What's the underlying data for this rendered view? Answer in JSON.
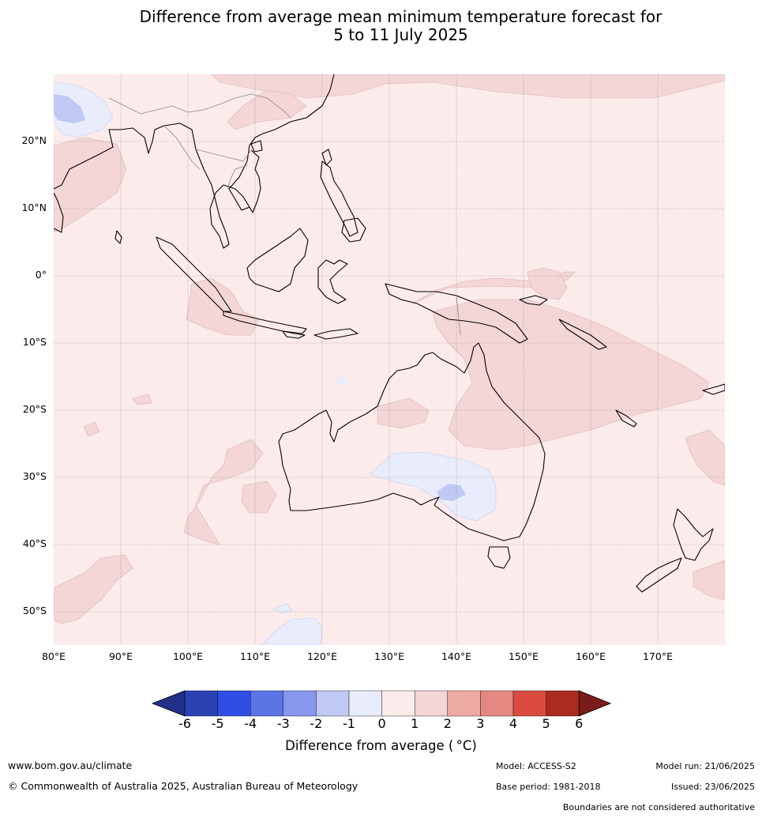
{
  "title_line1": "Difference from average mean minimum temperature forecast for",
  "title_line2": "5 to 11 July 2025",
  "lat_labels": [
    "20°N",
    "10°N",
    "0°",
    "10°S",
    "20°S",
    "30°S",
    "40°S",
    "50°S"
  ],
  "lon_labels": [
    "80°E",
    "90°E",
    "100°E",
    "110°E",
    "120°E",
    "130°E",
    "140°E",
    "150°E",
    "160°E",
    "170°E"
  ],
  "map": {
    "projection": "equirectangular",
    "lon_range": [
      80,
      180
    ],
    "lat_range": [
      -55,
      30
    ],
    "gridlines": true,
    "background_anomaly": "0 to 1 °C",
    "colors": {
      "ocean_land_0_1": "#fcebeb",
      "pos_1_2": "#f4d6d6",
      "neg_0_1": "#e9edfb",
      "neg_1_2": "#c0c8f4",
      "neg_2_3": "#8797ec",
      "coast": "#000000",
      "borders": "#888888",
      "grid": "#888888"
    }
  },
  "colorbar": {
    "ticks": [
      "-6",
      "-5",
      "-4",
      "-3",
      "-2",
      "-1",
      "0",
      "1",
      "2",
      "3",
      "4",
      "5",
      "6"
    ],
    "colors": [
      "#223087",
      "#2a42b4",
      "#2f4ee5",
      "#5b74e6",
      "#8797ec",
      "#c0c8f4",
      "#e9edfb",
      "#fcebeb",
      "#f4d6d6",
      "#edaaa5",
      "#e58881",
      "#d94c3f",
      "#ab2b21",
      "#7a1d1a"
    ],
    "label": "Difference from average ( °C)"
  },
  "footer": {
    "url": "www.bom.gov.au/climate",
    "copyright": "© Commonwealth of Australia 2025, Australian Bureau of Meteorology",
    "model": "Model: ACCESS-S2",
    "model_run": "Model run: 21/06/2025",
    "base_period": "Base period: 1981-2018",
    "issued": "Issued: 23/06/2025",
    "disclaimer": "Boundaries are not considered authoritative"
  }
}
